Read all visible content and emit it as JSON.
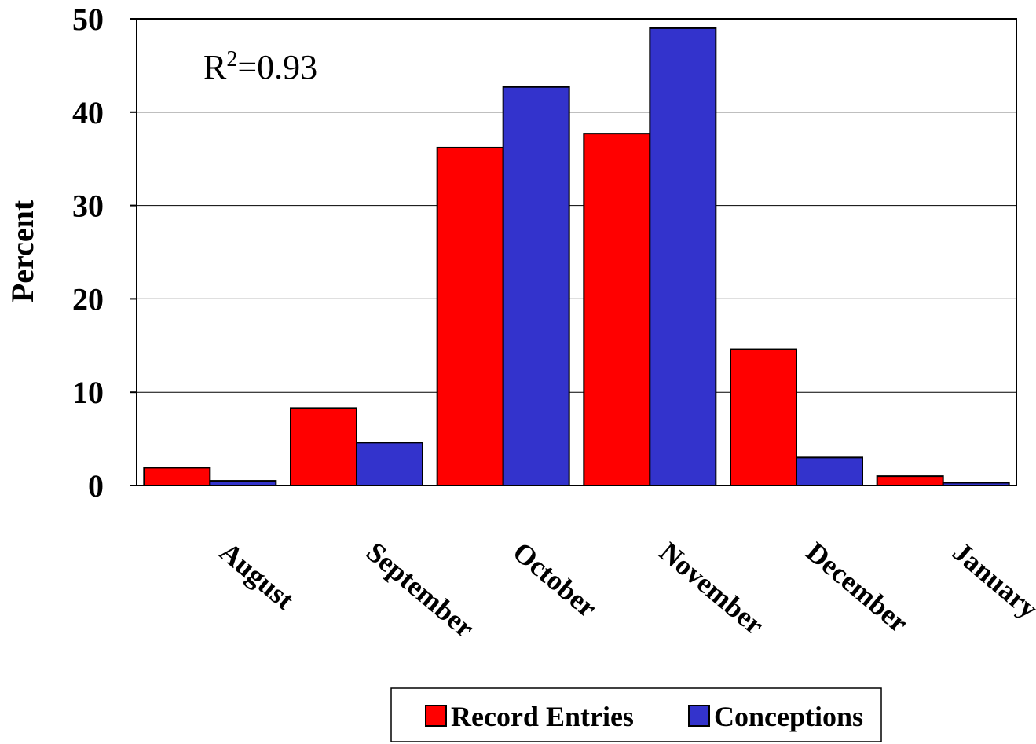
{
  "chart_data": {
    "type": "bar",
    "categories": [
      "August",
      "September",
      "October",
      "November",
      "December",
      "January"
    ],
    "series": [
      {
        "name": "Record Entries",
        "color": "#ff0000",
        "values": [
          1.9,
          8.3,
          36.2,
          37.7,
          14.6,
          1.0
        ]
      },
      {
        "name": "Conceptions",
        "color": "#3333cc",
        "values": [
          0.5,
          4.6,
          42.7,
          49.0,
          3.0,
          0.3
        ]
      }
    ],
    "title": "",
    "xlabel": "",
    "ylabel": "Percent",
    "ylim": [
      0,
      50
    ],
    "yticks": [
      0,
      10,
      20,
      30,
      40,
      50
    ],
    "grid": true,
    "legend": "bottom",
    "annotation": {
      "base": "R",
      "sup": "2",
      "rest": "=0.93"
    }
  }
}
